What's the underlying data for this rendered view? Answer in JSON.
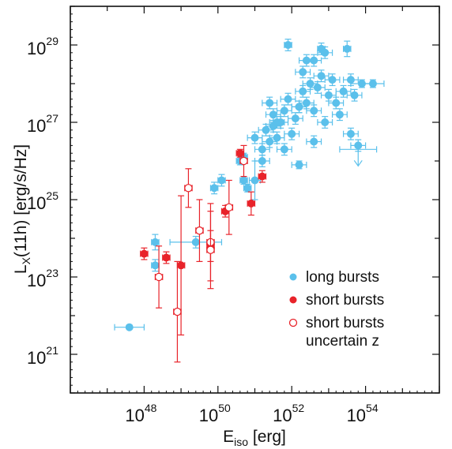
{
  "chart_data": {
    "type": "scatter",
    "xscale": "log",
    "yscale": "log",
    "xlim": [
      1e+46,
      1e+56
    ],
    "ylim": [
      1e+20,
      1e+30
    ],
    "xaxis": {
      "label_main": "E",
      "label_sub": "iso",
      "label_unit": " [erg]",
      "ticks": [
        {
          "base": "10",
          "exp": "48"
        },
        {
          "base": "10",
          "exp": "50"
        },
        {
          "base": "10",
          "exp": "52"
        },
        {
          "base": "10",
          "exp": "54"
        }
      ]
    },
    "yaxis": {
      "label_main": "L",
      "label_sub": "X",
      "label_unit": "(11h) [erg/s/Hz]",
      "ticks": [
        {
          "base": "10",
          "exp": "21"
        },
        {
          "base": "10",
          "exp": "23"
        },
        {
          "base": "10",
          "exp": "25"
        },
        {
          "base": "10",
          "exp": "27"
        },
        {
          "base": "10",
          "exp": "29"
        }
      ]
    },
    "colors": {
      "long": "#5bc0eb",
      "short": "#e8232a"
    },
    "legend": {
      "position": "bottom-right",
      "entries": [
        {
          "label": "long bursts",
          "marker": "filled",
          "color": "#5bc0eb"
        },
        {
          "label": "short bursts",
          "marker": "filled",
          "color": "#e8232a"
        },
        {
          "label_line1": "short bursts",
          "label_line2": "uncertain z",
          "marker": "open-crossed",
          "color": "#e8232a"
        }
      ]
    },
    "series": [
      {
        "name": "long bursts",
        "marker": "filled",
        "points": [
          [
            47.6,
            21.7,
            0.4,
            0.05
          ],
          [
            48.3,
            23.9,
            0.1,
            0.2
          ],
          [
            48.3,
            23.3,
            0.1,
            0.15
          ],
          [
            49.4,
            23.9,
            0.7,
            0.15
          ],
          [
            49.9,
            25.3,
            0.1,
            0.15
          ],
          [
            50.1,
            25.5,
            0.1,
            0.15
          ],
          [
            50.6,
            26.0,
            0.1,
            0.1
          ],
          [
            50.7,
            26.1,
            0.1,
            0.1
          ],
          [
            50.7,
            25.5,
            0.1,
            0.1
          ],
          [
            50.8,
            25.3,
            0.1,
            0.1
          ],
          [
            51.0,
            25.5,
            0.15,
            0.5
          ],
          [
            51.2,
            26.3,
            0.2,
            0.15
          ],
          [
            51.3,
            26.8,
            0.2,
            0.15
          ],
          [
            51.4,
            26.5,
            0.2,
            0.15
          ],
          [
            51.5,
            26.9,
            0.2,
            0.15
          ],
          [
            51.6,
            26.6,
            0.2,
            0.15
          ],
          [
            51.7,
            27.0,
            0.2,
            0.15
          ],
          [
            51.8,
            27.3,
            0.2,
            0.15
          ],
          [
            51.4,
            27.5,
            0.2,
            0.15
          ],
          [
            51.5,
            27.2,
            0.2,
            0.15
          ],
          [
            51.9,
            27.6,
            0.2,
            0.15
          ],
          [
            52.0,
            26.7,
            0.2,
            0.15
          ],
          [
            52.1,
            27.1,
            0.2,
            0.15
          ],
          [
            52.2,
            27.4,
            0.2,
            0.15
          ],
          [
            52.3,
            27.8,
            0.2,
            0.15
          ],
          [
            52.4,
            27.5,
            0.2,
            0.15
          ],
          [
            52.5,
            28.0,
            0.2,
            0.15
          ],
          [
            52.6,
            27.3,
            0.2,
            0.15
          ],
          [
            52.7,
            27.9,
            0.2,
            0.15
          ],
          [
            52.8,
            28.2,
            0.2,
            0.15
          ],
          [
            52.3,
            28.3,
            0.2,
            0.15
          ],
          [
            52.6,
            28.6,
            0.2,
            0.15
          ],
          [
            52.8,
            28.9,
            0.1,
            0.15
          ],
          [
            52.9,
            28.8,
            0.2,
            0.15
          ],
          [
            53.0,
            27.7,
            0.2,
            0.15
          ],
          [
            53.1,
            28.1,
            0.2,
            0.15
          ],
          [
            53.2,
            27.5,
            0.2,
            0.15
          ],
          [
            53.3,
            27.2,
            0.2,
            0.15
          ],
          [
            53.4,
            27.8,
            0.2,
            0.15
          ],
          [
            53.6,
            28.1,
            0.2,
            0.15
          ],
          [
            53.7,
            27.7,
            0.2,
            0.15
          ],
          [
            53.9,
            28.0,
            0.3,
            0.1
          ],
          [
            54.2,
            28.0,
            0.3,
            0.1
          ],
          [
            53.5,
            28.9,
            0.1,
            0.2
          ],
          [
            51.9,
            29.0,
            0.1,
            0.15
          ],
          [
            52.4,
            28.6,
            0.2,
            0.15
          ],
          [
            52.9,
            27.0,
            0.2,
            0.15
          ],
          [
            52.2,
            25.9,
            0.2,
            0.1
          ],
          [
            51.2,
            26.0,
            0.2,
            0.15
          ],
          [
            51.0,
            26.6,
            0.2,
            0.15
          ],
          [
            51.8,
            26.3,
            0.2,
            0.15
          ],
          [
            52.6,
            26.5,
            0.2,
            0.15
          ],
          [
            53.6,
            26.7,
            0.2,
            0.15
          ],
          [
            53.8,
            26.4,
            0.2,
            0.15
          ],
          [
            52.2,
            27.4,
            0.2,
            0.15
          ],
          [
            51.6,
            27.0,
            0.2,
            0.15
          ]
        ]
      },
      {
        "name": "short bursts",
        "marker": "filled",
        "points": [
          [
            48.0,
            23.6,
            0.1,
            0.15
          ],
          [
            48.6,
            23.5,
            0.1,
            0.15
          ],
          [
            49.0,
            23.3,
            0.1,
            1.8
          ],
          [
            49.8,
            23.8,
            0.1,
            0.4
          ],
          [
            50.2,
            24.7,
            0.1,
            0.15
          ],
          [
            50.6,
            26.2,
            0.1,
            0.1
          ],
          [
            50.9,
            24.9,
            0.1,
            0.3
          ],
          [
            51.2,
            25.6,
            0.1,
            0.15
          ]
        ]
      },
      {
        "name": "short bursts uncertain z",
        "marker": "open-crossed",
        "points": [
          [
            48.4,
            23.0,
            0.1,
            0.8
          ],
          [
            48.9,
            22.1,
            0.1,
            1.3
          ],
          [
            49.2,
            25.3,
            0.1,
            0.5
          ],
          [
            49.5,
            24.2,
            0.1,
            0.8
          ],
          [
            49.8,
            23.9,
            0.1,
            1.0
          ],
          [
            49.8,
            23.7,
            0.1,
            1.0
          ],
          [
            50.3,
            24.8,
            0.1,
            0.7
          ],
          [
            50.7,
            26.0,
            0.1,
            0.4
          ]
        ]
      }
    ],
    "upper_limit": {
      "x": 53.8,
      "y": 26.3,
      "xerr": 0.5
    }
  }
}
